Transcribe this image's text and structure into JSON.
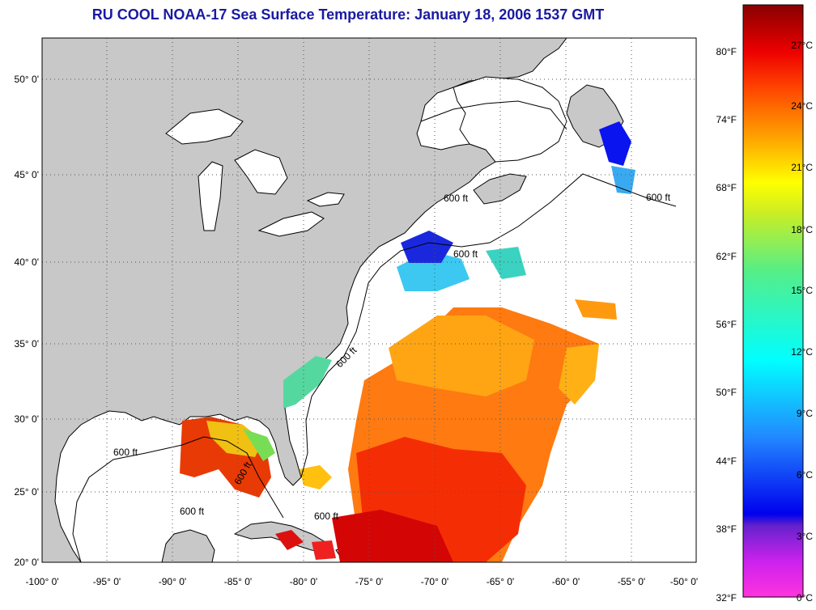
{
  "title": "RU COOL  NOAA-17  Sea Surface Temperature:  January 18, 2006 1537 GMT",
  "map": {
    "lon_ticks": [
      "-100° 0'",
      "-95° 0'",
      "-90° 0'",
      "-85° 0'",
      "-80° 0'",
      "-75° 0'",
      "-70° 0'",
      "-65° 0'",
      "-60° 0'",
      "-55° 0'",
      "-50° 0'"
    ],
    "lat_ticks": [
      "50° 0'",
      "45° 0'",
      "40° 0'",
      "35° 0'",
      "30° 0'",
      "25° 0'",
      "20° 0'"
    ],
    "contour_labels": [
      "600 ft",
      "600 ft",
      "600 ft",
      "600 ft",
      "600 ft",
      "600 ft",
      "600 ft",
      "600 ft"
    ],
    "colors": {
      "land": "#c8c8c8",
      "ocean": "#ffffff",
      "grid": "#555555"
    }
  },
  "colorbar": {
    "fahrenheit": [
      "80°F",
      "74°F",
      "68°F",
      "62°F",
      "56°F",
      "50°F",
      "44°F",
      "38°F",
      "32°F"
    ],
    "celsius": [
      "27°C",
      "24°C",
      "21°C",
      "18°C",
      "15°C",
      "12°C",
      "9°C",
      "6°C",
      "3°C",
      "0°C"
    ]
  }
}
